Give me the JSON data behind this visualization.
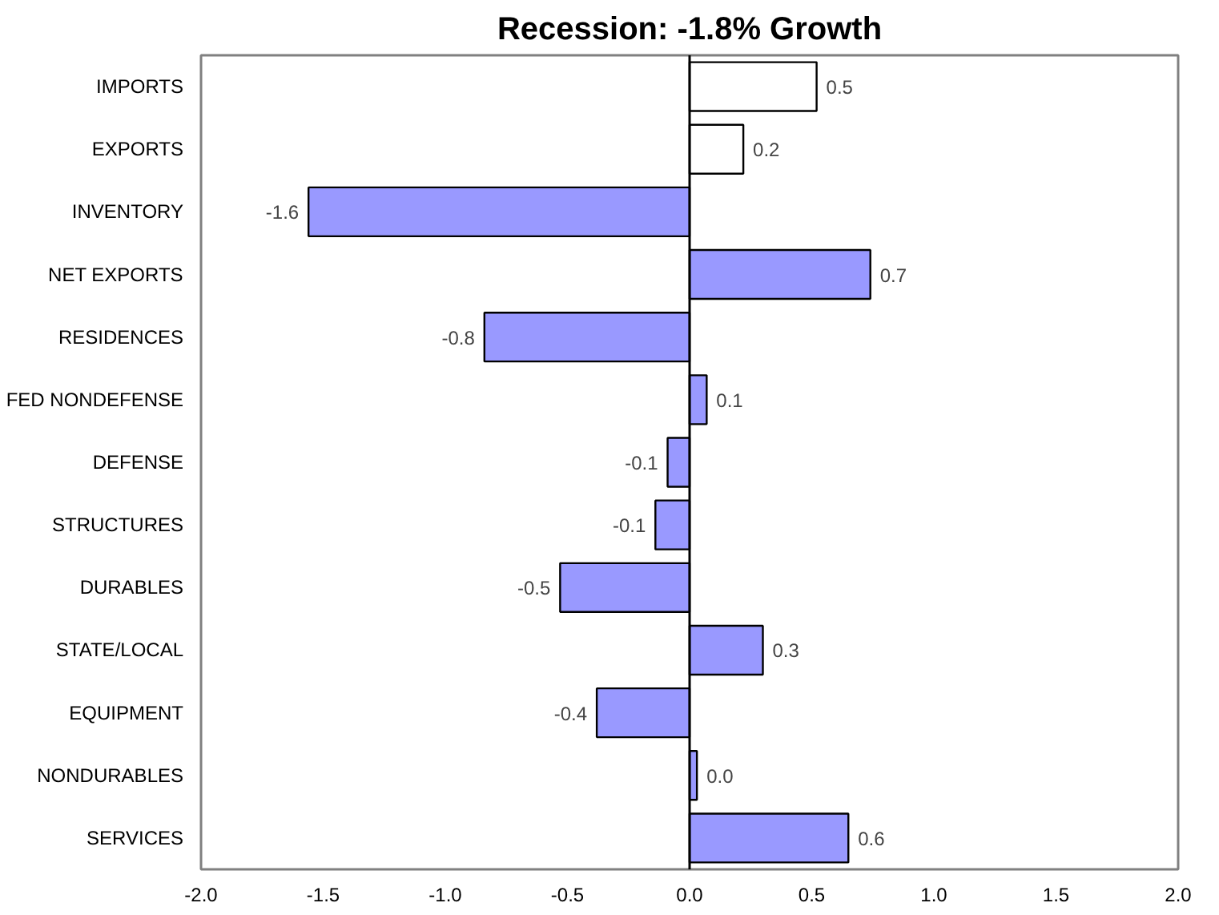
{
  "chart_data": {
    "type": "bar",
    "orientation": "horizontal",
    "title": "Recession: -1.8% Growth",
    "categories": [
      "IMPORTS",
      "EXPORTS",
      "INVENTORY",
      "NET EXPORTS",
      "RESIDENCES",
      "FED NONDEFENSE",
      "DEFENSE",
      "STRUCTURES",
      "DURABLES",
      "STATE/LOCAL",
      "EQUIPMENT",
      "NONDURABLES",
      "SERVICES"
    ],
    "values": [
      0.52,
      0.22,
      -1.56,
      0.74,
      -0.84,
      0.07,
      -0.09,
      -0.14,
      -0.53,
      0.3,
      -0.38,
      0.03,
      0.65
    ],
    "value_labels": [
      "0.5",
      "0.2",
      "-1.6",
      "0.7",
      "-0.8",
      "0.1",
      "-0.1",
      "-0.1",
      "-0.5",
      "0.3",
      "-0.4",
      "0.0",
      "0.6"
    ],
    "colors": [
      "#ffffff",
      "#ffffff",
      "#9999ff",
      "#9999ff",
      "#9999ff",
      "#9999ff",
      "#9999ff",
      "#9999ff",
      "#9999ff",
      "#9999ff",
      "#9999ff",
      "#9999ff",
      "#9999ff"
    ],
    "xlim": [
      -2.0,
      2.0
    ],
    "xticks": [
      {
        "value": -2,
        "label": "-2.0"
      },
      {
        "value": -1.5,
        "label": "-1.5"
      },
      {
        "value": -1,
        "label": "-1.0"
      },
      {
        "value": -0.5,
        "label": "-0.5"
      },
      {
        "value": 0,
        "label": "0.0"
      },
      {
        "value": 0.5,
        "label": "0.5"
      },
      {
        "value": 1,
        "label": "1.0"
      },
      {
        "value": 1.5,
        "label": "1.5"
      },
      {
        "value": 2,
        "label": "2.0"
      }
    ],
    "ref_lines": [
      {
        "axis": "x",
        "value": 0,
        "color": "#000000"
      }
    ],
    "grid": false
  }
}
